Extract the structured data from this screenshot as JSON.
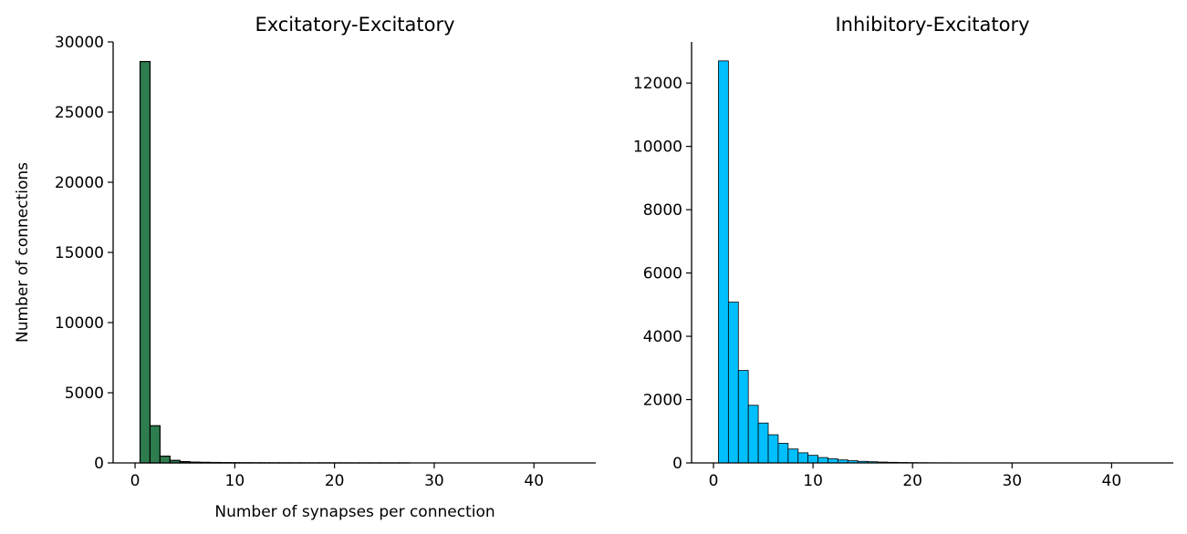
{
  "chart_data": [
    {
      "type": "bar",
      "title": "Excitatory-Excitatory",
      "xlabel": "Number of synapses per connection",
      "ylabel": "Number of connections",
      "bar_color": "#2e7d4f",
      "edge_color": "#000000",
      "xlim": [
        -2.2,
        46.2
      ],
      "ylim": [
        0,
        30000
      ],
      "xticks": [
        0,
        10,
        20,
        30,
        40
      ],
      "yticks": [
        0,
        5000,
        10000,
        15000,
        20000,
        25000,
        30000
      ],
      "bin_start": 0.5,
      "bin_width": 1,
      "values": [
        28600,
        2650,
        480,
        180,
        90,
        55,
        40,
        30,
        22,
        18,
        14,
        11,
        9,
        7,
        6,
        5,
        4,
        3,
        3,
        2,
        2,
        1,
        1,
        1,
        1,
        1,
        1,
        0,
        0,
        0,
        0,
        0,
        0,
        0,
        0,
        0,
        0,
        0,
        0,
        0,
        0,
        0,
        0,
        0
      ],
      "grid": false
    },
    {
      "type": "bar",
      "title": "Inhibitory-Excitatory",
      "xlabel": "",
      "ylabel": "",
      "bar_color": "#00bfff",
      "edge_color": "#000000",
      "xlim": [
        -2.2,
        46.2
      ],
      "ylim": [
        0,
        13300
      ],
      "xticks": [
        0,
        10,
        20,
        30,
        40
      ],
      "yticks": [
        0,
        2000,
        4000,
        6000,
        8000,
        10000,
        12000
      ],
      "bin_start": 0.5,
      "bin_width": 1,
      "values": [
        12700,
        5080,
        2920,
        1820,
        1260,
        890,
        620,
        440,
        320,
        240,
        170,
        130,
        95,
        70,
        50,
        38,
        28,
        20,
        15,
        11,
        8,
        6,
        5,
        4,
        3,
        2,
        2,
        1,
        1,
        1,
        1,
        1,
        0,
        0,
        0,
        0,
        0,
        0,
        0,
        0,
        0,
        0,
        0,
        0
      ],
      "grid": false
    }
  ]
}
